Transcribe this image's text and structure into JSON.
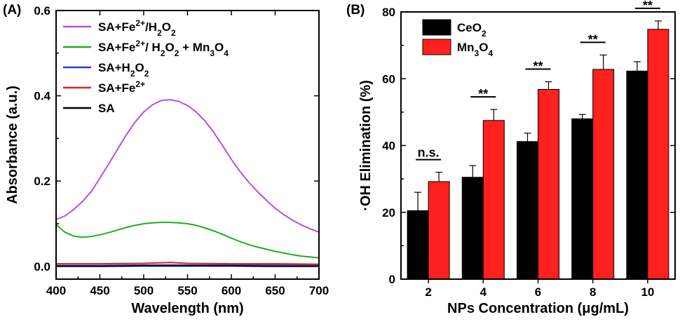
{
  "chart_data": [
    {
      "type": "line",
      "panel_label": "(A)",
      "xlabel": "Wavelength (nm)",
      "ylabel": "Absorbance (a.u.)",
      "xlim": [
        400,
        700
      ],
      "ylim": [
        -0.03,
        0.6
      ],
      "xticks": [
        "400",
        "450",
        "500",
        "550",
        "600",
        "650",
        "700"
      ],
      "yticks": [
        "0.0",
        "0.2",
        "0.4",
        "0.6"
      ],
      "legend_position": "top-left",
      "series": [
        {
          "name": "SA+Fe2+/H2O2",
          "legend_parts": [
            [
              "SA+Fe",
              ""
            ],
            [
              "2+",
              "sup"
            ],
            [
              "/H",
              ""
            ],
            [
              "2",
              "sub"
            ],
            [
              "O",
              ""
            ],
            [
              "2",
              "sub"
            ]
          ],
          "color": "#B84FE0",
          "x": [
            400,
            410,
            420,
            430,
            440,
            450,
            460,
            470,
            480,
            490,
            500,
            510,
            520,
            530,
            540,
            550,
            560,
            570,
            580,
            590,
            600,
            610,
            620,
            630,
            640,
            650,
            660,
            670,
            680,
            690,
            700
          ],
          "y": [
            0.11,
            0.118,
            0.133,
            0.152,
            0.175,
            0.207,
            0.24,
            0.274,
            0.308,
            0.338,
            0.362,
            0.379,
            0.389,
            0.391,
            0.387,
            0.377,
            0.362,
            0.341,
            0.314,
            0.283,
            0.251,
            0.222,
            0.197,
            0.175,
            0.155,
            0.136,
            0.121,
            0.108,
            0.097,
            0.088,
            0.08
          ]
        },
        {
          "name": "SA+Fe2+/H2O2+Mn3O4",
          "legend_parts": [
            [
              "SA+Fe",
              ""
            ],
            [
              "2+",
              "sup"
            ],
            [
              "/ H",
              ""
            ],
            [
              "2",
              "sub"
            ],
            [
              "O",
              ""
            ],
            [
              "2",
              "sub"
            ],
            [
              " + Mn",
              ""
            ],
            [
              "3",
              "sub"
            ],
            [
              "O",
              ""
            ],
            [
              "4",
              "sub"
            ]
          ],
          "color": "#1FAF1F",
          "x": [
            400,
            410,
            420,
            430,
            440,
            450,
            460,
            470,
            480,
            490,
            500,
            510,
            520,
            530,
            540,
            550,
            560,
            570,
            580,
            590,
            600,
            610,
            620,
            630,
            640,
            650,
            660,
            670,
            680,
            690,
            700
          ],
          "y": [
            0.098,
            0.08,
            0.071,
            0.068,
            0.07,
            0.074,
            0.079,
            0.085,
            0.091,
            0.096,
            0.1,
            0.102,
            0.103,
            0.103,
            0.102,
            0.1,
            0.096,
            0.09,
            0.083,
            0.075,
            0.066,
            0.058,
            0.051,
            0.045,
            0.04,
            0.035,
            0.031,
            0.027,
            0.024,
            0.022,
            0.02
          ]
        },
        {
          "name": "SA+H2O2",
          "legend_parts": [
            [
              "SA+H",
              ""
            ],
            [
              "2",
              "sub"
            ],
            [
              "O",
              ""
            ],
            [
              "2",
              "sub"
            ]
          ],
          "color": "#2040C8",
          "x": [
            400,
            450,
            500,
            550,
            600,
            650,
            700
          ],
          "y": [
            0.002,
            0.002,
            0.003,
            0.003,
            0.003,
            0.003,
            0.003
          ]
        },
        {
          "name": "SA+Fe2+",
          "legend_parts": [
            [
              "SA+Fe",
              ""
            ],
            [
              "2+",
              "sup"
            ]
          ],
          "color": "#E02020",
          "x": [
            400,
            450,
            500,
            530,
            550,
            600,
            650,
            700
          ],
          "y": [
            0.006,
            0.006,
            0.007,
            0.009,
            0.007,
            0.006,
            0.006,
            0.005
          ]
        },
        {
          "name": "SA",
          "legend_parts": [
            [
              "SA",
              ""
            ]
          ],
          "color": "#000000",
          "x": [
            400,
            450,
            500,
            550,
            600,
            650,
            700
          ],
          "y": [
            0.0,
            0.0,
            0.001,
            0.001,
            0.001,
            0.0,
            0.0
          ]
        }
      ]
    },
    {
      "type": "bar",
      "panel_label": "(B)",
      "xlabel": "NPs Concentration (μg/mL)",
      "ylabel": "·OH Elimination (%)",
      "ylim": [
        0,
        80
      ],
      "yticks": [
        "0",
        "20",
        "40",
        "60",
        "80"
      ],
      "categories": [
        "2",
        "4",
        "6",
        "8",
        "10"
      ],
      "legend_position": "top-left",
      "series": [
        {
          "name": "CeO2",
          "legend_parts": [
            [
              "CeO",
              ""
            ],
            [
              "2",
              "sub"
            ]
          ],
          "color": "#000000",
          "values": [
            20.5,
            30.5,
            41.2,
            48.0,
            62.3
          ],
          "errors": [
            5.5,
            3.5,
            2.5,
            1.3,
            2.8
          ]
        },
        {
          "name": "Mn3O4",
          "legend_parts": [
            [
              "Mn",
              ""
            ],
            [
              "3",
              "sub"
            ],
            [
              "O",
              ""
            ],
            [
              "4",
              "sub"
            ]
          ],
          "color": "#FF2020",
          "values": [
            29.2,
            47.5,
            56.8,
            62.8,
            74.8
          ],
          "errors": [
            2.8,
            3.3,
            2.3,
            4.3,
            2.5
          ]
        }
      ],
      "significance": [
        "n.s.",
        "**",
        "**",
        "**",
        "**"
      ]
    }
  ]
}
